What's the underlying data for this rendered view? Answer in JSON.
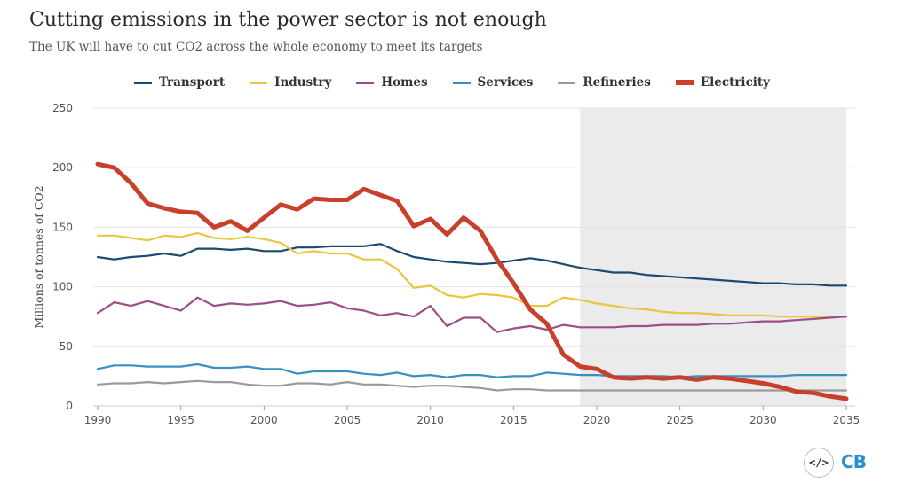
{
  "header": {
    "title": "Cutting emissions in the power sector is not enough",
    "subtitle": "The UK will have to cut CO2 across the whole economy to meet its targets"
  },
  "logos": {
    "code_label": "</>",
    "brand_label": "CB"
  },
  "chart_data": {
    "type": "line",
    "title": "Cutting emissions in the power sector is not enough",
    "subtitle": "The UK will have to cut CO2 across the whole economy to meet its targets",
    "xlabel": "",
    "ylabel": "Millions of tonnes of CO2",
    "xlim": [
      1990,
      2035
    ],
    "ylim": [
      0,
      250
    ],
    "xticks": [
      1990,
      1995,
      2000,
      2005,
      2010,
      2015,
      2020,
      2025,
      2030,
      2035
    ],
    "yticks": [
      0,
      50,
      100,
      150,
      200,
      250
    ],
    "grid": true,
    "legend_position": "top",
    "projection_shading": {
      "from": 2019,
      "to": 2035,
      "color": "#ebebeb"
    },
    "x": [
      1990,
      1991,
      1992,
      1993,
      1994,
      1995,
      1996,
      1997,
      1998,
      1999,
      2000,
      2001,
      2002,
      2003,
      2004,
      2005,
      2006,
      2007,
      2008,
      2009,
      2010,
      2011,
      2012,
      2013,
      2014,
      2015,
      2016,
      2017,
      2018,
      2019,
      2020,
      2021,
      2022,
      2023,
      2024,
      2025,
      2026,
      2027,
      2028,
      2029,
      2030,
      2031,
      2032,
      2033,
      2034,
      2035
    ],
    "series": [
      {
        "name": "Transport",
        "color": "#1a4a72",
        "width": 2.2,
        "values": [
          125,
          123,
          125,
          126,
          128,
          126,
          132,
          132,
          131,
          132,
          130,
          130,
          133,
          133,
          134,
          134,
          134,
          136,
          130,
          125,
          123,
          121,
          120,
          119,
          120,
          122,
          124,
          122,
          119,
          116,
          114,
          112,
          112,
          110,
          109,
          108,
          107,
          106,
          105,
          104,
          103,
          103,
          102,
          102,
          101,
          101
        ]
      },
      {
        "name": "Industry",
        "color": "#e8c640",
        "width": 2.2,
        "values": [
          143,
          143,
          141,
          139,
          143,
          142,
          145,
          141,
          140,
          142,
          140,
          137,
          128,
          130,
          128,
          128,
          123,
          123,
          115,
          99,
          101,
          93,
          91,
          94,
          93,
          91,
          84,
          84,
          91,
          89,
          86,
          84,
          82,
          81,
          79,
          78,
          78,
          77,
          76,
          76,
          76,
          75,
          75,
          75,
          75,
          75
        ]
      },
      {
        "name": "Homes",
        "color": "#9b4f86",
        "width": 2.2,
        "values": [
          78,
          87,
          84,
          88,
          84,
          80,
          91,
          84,
          86,
          85,
          86,
          88,
          84,
          85,
          87,
          82,
          80,
          76,
          78,
          75,
          84,
          67,
          74,
          74,
          62,
          65,
          67,
          64,
          68,
          66,
          66,
          66,
          67,
          67,
          68,
          68,
          68,
          69,
          69,
          70,
          71,
          71,
          72,
          73,
          74,
          75
        ]
      },
      {
        "name": "Services",
        "color": "#3a8ec4",
        "width": 2.2,
        "values": [
          31,
          34,
          34,
          33,
          33,
          33,
          35,
          32,
          32,
          33,
          31,
          31,
          27,
          29,
          29,
          29,
          27,
          26,
          28,
          25,
          26,
          24,
          26,
          26,
          24,
          25,
          25,
          28,
          27,
          26,
          26,
          25,
          25,
          25,
          25,
          24,
          25,
          25,
          25,
          25,
          25,
          25,
          26,
          26,
          26,
          26
        ]
      },
      {
        "name": "Refineries",
        "color": "#9a9a9a",
        "width": 2.2,
        "values": [
          18,
          19,
          19,
          20,
          19,
          20,
          21,
          20,
          20,
          18,
          17,
          17,
          19,
          19,
          18,
          20,
          18,
          18,
          17,
          16,
          17,
          17,
          16,
          15,
          13,
          14,
          14,
          13,
          13,
          13,
          13,
          13,
          13,
          13,
          13,
          13,
          13,
          13,
          13,
          13,
          13,
          13,
          13,
          13,
          13,
          13
        ]
      },
      {
        "name": "Electricity",
        "color": "#c8402c",
        "width": 5,
        "values": [
          203,
          200,
          187,
          170,
          166,
          163,
          162,
          150,
          155,
          147,
          158,
          169,
          165,
          174,
          173,
          173,
          182,
          177,
          172,
          151,
          157,
          144,
          158,
          147,
          123,
          103,
          81,
          69,
          43,
          33,
          31,
          24,
          23,
          24,
          23,
          24,
          22,
          24,
          23,
          21,
          19,
          16,
          12,
          11,
          8,
          6
        ]
      }
    ]
  }
}
